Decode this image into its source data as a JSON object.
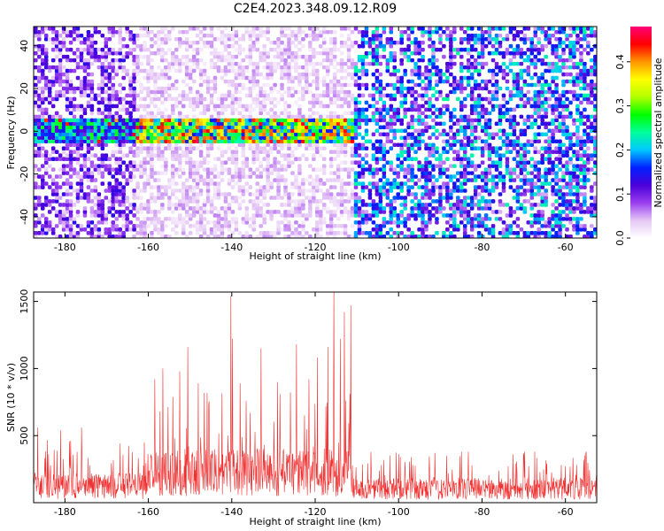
{
  "figure": {
    "title": "C2E4.2023.348.09.12.R09"
  },
  "chart_data": [
    {
      "type": "heatmap",
      "title": "C2E4.2023.348.09.12.R09",
      "xlabel": "Height of straight line (km)",
      "ylabel": "Frequency (Hz)",
      "xlim": [
        -187.5,
        -52.5
      ],
      "ylim": [
        -50,
        49
      ],
      "xticks": [
        -180,
        -160,
        -140,
        -120,
        -100,
        -80,
        -60
      ],
      "yticks": [
        -40,
        -20,
        0,
        20,
        40
      ],
      "colorbar": {
        "label": "Normalized spectral amplitude",
        "range": [
          0,
          0.48
        ],
        "ticks": [
          0.0,
          0.1,
          0.2,
          0.3,
          0.4
        ],
        "colormap": [
          "#ffffff",
          "#e6c8f5",
          "#9a3ff0",
          "#4a00d8",
          "#0020ff",
          "#00c8ff",
          "#00ff9a",
          "#00ff00",
          "#b4ff00",
          "#ffff00",
          "#ff9600",
          "#ff0000",
          "#ff0078"
        ]
      },
      "regions": [
        {
          "x": [
            -187.5,
            -163
          ],
          "description_level": 0.07,
          "band_level": 0.18
        },
        {
          "x": [
            -163,
            -111
          ],
          "description_level": 0.03,
          "band_level": 0.28
        },
        {
          "x": [
            -111,
            -52.5
          ],
          "description_level": 0.12,
          "band_level": 0.06
        }
      ],
      "signal_band": {
        "frequency_center": 0,
        "frequency_halfwidth": 6,
        "x": [
          -187.5,
          -111
        ]
      }
    },
    {
      "type": "line",
      "xlabel": "Height of straight line (km)",
      "ylabel": "SNR (10 * v/v)",
      "xlim": [
        -187.5,
        -52.5
      ],
      "ylim": [
        0,
        1570
      ],
      "xticks": [
        -180,
        -160,
        -140,
        -120,
        -100,
        -80,
        -60
      ],
      "yticks": [
        500,
        1000,
        1500
      ],
      "color": "#f03030",
      "segments": [
        {
          "x": [
            -187.5,
            -160
          ],
          "typical": 180,
          "max": 560
        },
        {
          "x": [
            -160,
            -111
          ],
          "typical": 320,
          "max": 1600
        },
        {
          "x": [
            -111,
            -52.5
          ],
          "typical": 150,
          "max": 380
        }
      ],
      "peaks": [
        {
          "x": -186.5,
          "y": 560
        },
        {
          "x": -181,
          "y": 540
        },
        {
          "x": -176,
          "y": 560
        },
        {
          "x": -158.5,
          "y": 920
        },
        {
          "x": -156.5,
          "y": 1000
        },
        {
          "x": -152.5,
          "y": 980
        },
        {
          "x": -150.5,
          "y": 1160
        },
        {
          "x": -148,
          "y": 890
        },
        {
          "x": -140.2,
          "y": 1540
        },
        {
          "x": -139.8,
          "y": 1220
        },
        {
          "x": -138,
          "y": 890
        },
        {
          "x": -133,
          "y": 1150
        },
        {
          "x": -129,
          "y": 900
        },
        {
          "x": -124.5,
          "y": 1180
        },
        {
          "x": -121.5,
          "y": 920
        },
        {
          "x": -119.5,
          "y": 1080
        },
        {
          "x": -117,
          "y": 1160
        },
        {
          "x": -115.5,
          "y": 1590
        },
        {
          "x": -114,
          "y": 1220
        },
        {
          "x": -113,
          "y": 1420
        },
        {
          "x": -111.5,
          "y": 1470
        },
        {
          "x": -97,
          "y": 340
        },
        {
          "x": -70,
          "y": 350
        },
        {
          "x": -55,
          "y": 380
        }
      ]
    }
  ]
}
